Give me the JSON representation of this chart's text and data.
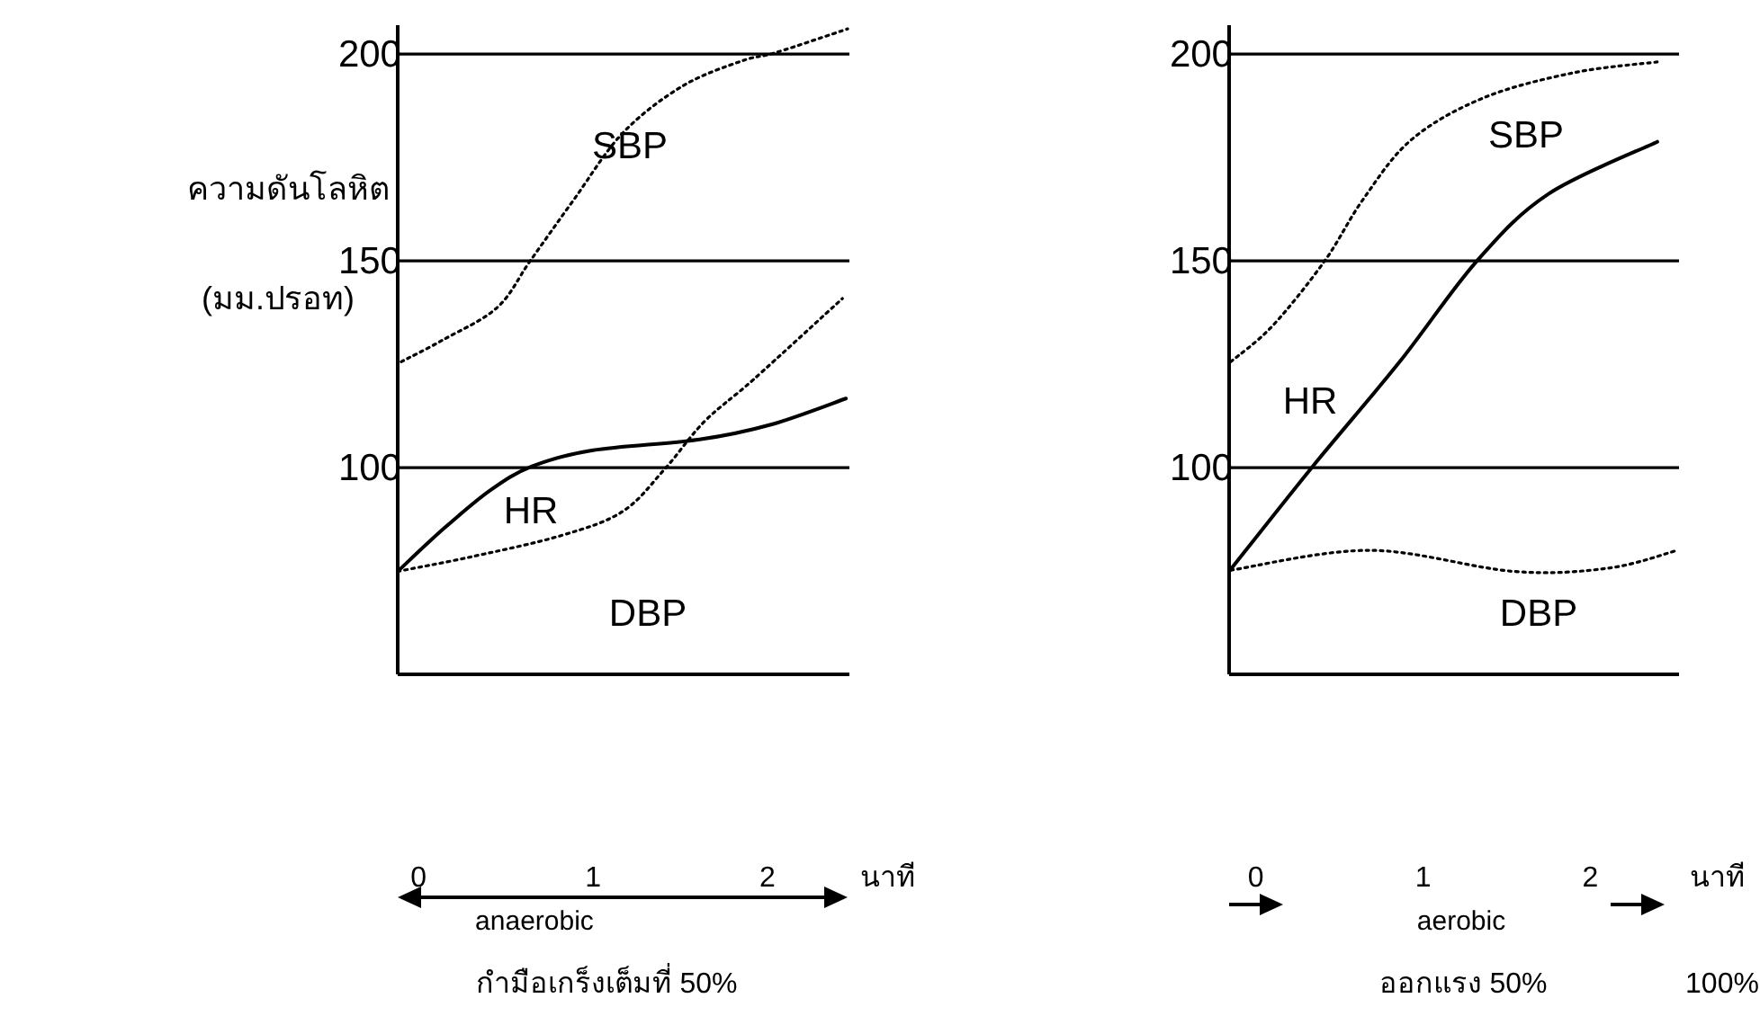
{
  "chart_data": [
    {
      "type": "line",
      "ylabel": "ความดันโลหิต\n(มม.ปรอท)",
      "xlabel": "นาที",
      "grid": "y",
      "xlim": [
        -0.12,
        2.47
      ],
      "xticks": [
        0,
        1,
        2
      ],
      "ylim": [
        50,
        207
      ],
      "yticks": [
        100,
        150,
        200
      ],
      "series": [
        {
          "name": "SBP",
          "color": "#000000",
          "line_style": "dotted",
          "x": [
            -0.1,
            0.14,
            0.45,
            0.64,
            0.89,
            1.17,
            1.51,
            1.85,
            2.05,
            2.46
          ],
          "values": [
            125.6,
            130.9,
            138.7,
            150,
            164.8,
            180.9,
            192.2,
            198.3,
            200.4,
            206.1
          ]
        },
        {
          "name": "HR",
          "color": "#000000",
          "line_style": "solid",
          "x": [
            -0.12,
            0.14,
            0.41,
            0.65,
            1.0,
            1.61,
            2.02,
            2.45
          ],
          "values": [
            74.9,
            85.1,
            94.5,
            100.3,
            104.2,
            106.8,
            110.4,
            116.7
          ]
        },
        {
          "name": "DBP",
          "color": "#000000",
          "line_style": "dotted",
          "x": [
            -0.12,
            0.31,
            0.82,
            1.17,
            1.41,
            1.64,
            1.92,
            2.43
          ],
          "values": [
            74.9,
            78.5,
            83.6,
            89.4,
            99.6,
            111.2,
            121.3,
            140.9
          ]
        }
      ],
      "annotations": [
        "anaerobic",
        "กำมือเกร็งเต็มที่ 50%"
      ]
    },
    {
      "type": "line",
      "xlabel": "นาที",
      "grid": "y",
      "xlim": [
        -0.16,
        2.53
      ],
      "xticks": [
        0,
        1,
        2
      ],
      "ylim": [
        50,
        207
      ],
      "yticks": [
        100,
        150,
        200
      ],
      "series": [
        {
          "name": "SBP",
          "color": "#000000",
          "line_style": "dotted",
          "x": [
            -0.15,
            0.1,
            0.41,
            0.64,
            0.93,
            1.36,
            1.9,
            2.4
          ],
          "values": [
            125.6,
            134.3,
            149.9,
            164.8,
            179.3,
            189.4,
            195.5,
            198.1
          ]
        },
        {
          "name": "HR",
          "color": "#000000",
          "line_style": "solid",
          "x": [
            -0.16,
            0.34,
            0.86,
            1.32,
            1.75,
            2.4
          ],
          "values": [
            74.9,
            100.3,
            125.6,
            149.9,
            166.2,
            178.8
          ]
        },
        {
          "name": "DBP",
          "color": "#000000",
          "line_style": "dotted",
          "x": [
            -0.15,
            0.68,
            1.54,
            2.11,
            2.52
          ],
          "values": [
            75.2,
            80.0,
            74.9,
            75.7,
            80.0
          ]
        }
      ],
      "annotations": [
        "aerobic",
        "ออกแรง 50%",
        "100%"
      ]
    }
  ]
}
